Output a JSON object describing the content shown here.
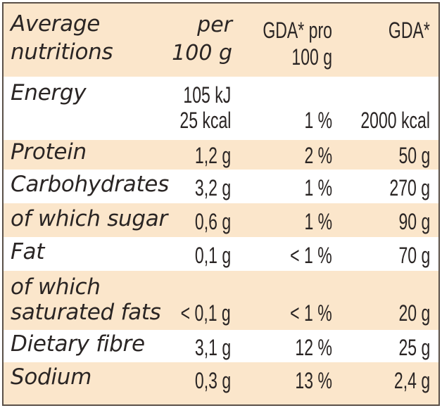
{
  "header": {
    "col_name_line1": "Average",
    "col_name_line2": "nutritions",
    "col_per_line1": "per",
    "col_per_line2": "100 g",
    "col_gda_pro_line1": "GDA* pro",
    "col_gda_pro_line2": "100 g",
    "col_gda": "GDA*"
  },
  "rows": [
    {
      "name": "Energy",
      "per_line1": "105 kJ",
      "per_line2": "25 kcal",
      "gda_pro": "1 %",
      "gda": "2000 kcal"
    },
    {
      "name": "Protein",
      "per": "1,2 g",
      "gda_pro": "2 %",
      "gda": "50 g"
    },
    {
      "name": "Carbohydrates",
      "per": "3,2 g",
      "gda_pro": "1 %",
      "gda": "270 g"
    },
    {
      "name": "of which sugar",
      "per": "0,6 g",
      "gda_pro": "1 %",
      "gda": "90 g"
    },
    {
      "name": "Fat",
      "per": "0,1 g",
      "gda_pro": "< 1 %",
      "gda": "70 g"
    },
    {
      "name_line1": "of which",
      "name_line2": "saturated fats",
      "per": "< 0,1 g",
      "gda_pro": "< 1 %",
      "gda": "20 g"
    },
    {
      "name": "Dietary fibre",
      "per": "3,1 g",
      "gda_pro": "12 %",
      "gda": "25 g"
    },
    {
      "name": "Sodium",
      "per": "0,3 g",
      "gda_pro": "13 %",
      "gda": "2,4 g"
    }
  ]
}
